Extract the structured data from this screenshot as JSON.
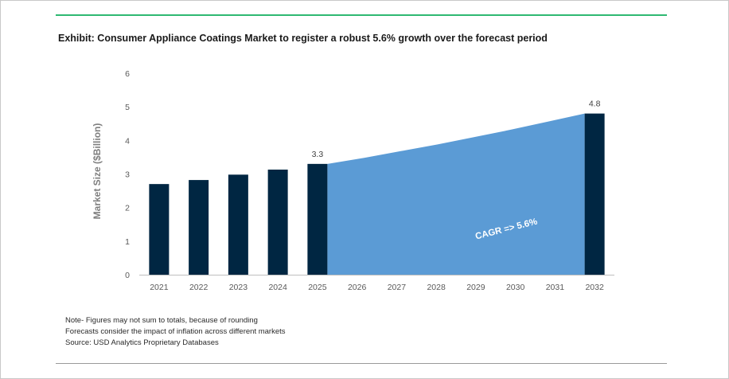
{
  "chart_data": {
    "type": "bar",
    "title": "Exhibit: Consumer Appliance Coatings Market to register a robust 5.6% growth over the forecast period",
    "xlabel": "",
    "ylabel": "Market Size ($Billion)",
    "ylim": [
      0,
      6
    ],
    "yticks": [
      "0",
      "1",
      "2",
      "3",
      "4",
      "5",
      "6"
    ],
    "categories": [
      "2021",
      "2022",
      "2023",
      "2024",
      "2025",
      "2026",
      "2027",
      "2028",
      "2029",
      "2030",
      "2031",
      "2032"
    ],
    "bars": [
      {
        "year": "2021",
        "value": 2.7,
        "label": ""
      },
      {
        "year": "2022",
        "value": 2.82,
        "label": ""
      },
      {
        "year": "2023",
        "value": 2.98,
        "label": ""
      },
      {
        "year": "2024",
        "value": 3.13,
        "label": ""
      },
      {
        "year": "2025",
        "value": 3.3,
        "label": "3.3"
      },
      {
        "year": "2032",
        "value": 4.8,
        "label": "4.8"
      }
    ],
    "forecast_area": {
      "from": "2025",
      "to": "2032",
      "values": [
        3.3,
        3.48,
        3.68,
        3.88,
        4.1,
        4.32,
        4.56,
        4.8
      ]
    },
    "annotation": "CAGR =>  5.6%",
    "grid": false,
    "legend": "none",
    "colors": {
      "bar": "#002642",
      "area": "#5b9bd5",
      "axis": "#bfbfbf",
      "tick_text": "#595959"
    }
  },
  "notes": [
    "Note- Figures may not sum to totals, because of rounding",
    "Forecasts consider the impact of inflation across different markets",
    "Source: USD Analytics Proprietary Databases"
  ]
}
